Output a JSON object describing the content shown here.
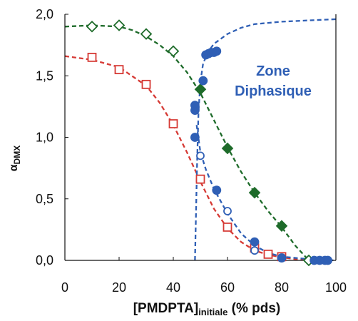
{
  "chart_data": {
    "type": "scatter",
    "xlabel_main": "[PMDPTA]",
    "xlabel_sub": "initiale",
    "xlabel_unit": " (% pds)",
    "ylabel_main": "α",
    "ylabel_sub": "DMX",
    "xlim": [
      0,
      100
    ],
    "ylim": [
      0,
      2.0
    ],
    "xticks": [
      0,
      20,
      40,
      60,
      80,
      100
    ],
    "yticks": [
      0.0,
      0.5,
      1.0,
      1.5,
      2.0
    ],
    "xtick_labels": [
      "0",
      "20",
      "40",
      "60",
      "80",
      "100"
    ],
    "ytick_labels": [
      "0,0",
      "0,5",
      "1,0",
      "1,5",
      "2,0"
    ],
    "annotation_line1": "Zone",
    "annotation_line2": "Diphasique",
    "grid": false,
    "series": [
      {
        "color": "#1e6b2a",
        "marker": "diamond-open",
        "points": [
          [
            10,
            1.9
          ],
          [
            20,
            1.91
          ],
          [
            30,
            1.84
          ],
          [
            40,
            1.7
          ]
        ]
      },
      {
        "color": "#1e6b2a",
        "marker": "diamond-filled",
        "points": [
          [
            50,
            1.39
          ],
          [
            60,
            0.91
          ],
          [
            70,
            0.55
          ],
          [
            80,
            0.28
          ]
        ]
      },
      {
        "color": "#1e6b2a",
        "marker": "diamond-open",
        "points": [
          [
            90,
            0.0
          ]
        ]
      },
      {
        "color": "#d63a35",
        "marker": "square-open",
        "points": [
          [
            10,
            1.65
          ],
          [
            20,
            1.55
          ],
          [
            30,
            1.43
          ],
          [
            40,
            1.11
          ],
          [
            50,
            0.66
          ],
          [
            60,
            0.27
          ],
          [
            70,
            0.1
          ],
          [
            75,
            0.05
          ],
          [
            80,
            0.03
          ]
        ]
      },
      {
        "color": "#2f5fb5",
        "marker": "circle-filled",
        "points": [
          [
            48,
            1.26
          ],
          [
            48,
            1.22
          ],
          [
            48,
            1.0
          ],
          [
            51,
            1.46
          ],
          [
            52,
            1.67
          ],
          [
            53,
            1.68
          ],
          [
            54,
            1.69
          ],
          [
            55,
            1.69
          ],
          [
            56,
            1.7
          ],
          [
            56,
            0.57
          ],
          [
            70,
            0.15
          ],
          [
            80,
            0.02
          ],
          [
            92,
            0.0
          ],
          [
            94,
            0.0
          ],
          [
            96,
            0.0
          ],
          [
            97,
            0.0
          ]
        ]
      },
      {
        "color": "#2f5fb5",
        "marker": "circle-open",
        "points": [
          [
            50,
            0.85
          ],
          [
            60,
            0.4
          ],
          [
            70,
            0.08
          ]
        ]
      }
    ],
    "curves": [
      {
        "color": "#1e6b2a",
        "points": [
          [
            0,
            1.9
          ],
          [
            10,
            1.91
          ],
          [
            20,
            1.9
          ],
          [
            25,
            1.87
          ],
          [
            30,
            1.82
          ],
          [
            35,
            1.75
          ],
          [
            40,
            1.66
          ],
          [
            45,
            1.53
          ],
          [
            50,
            1.36
          ],
          [
            55,
            1.14
          ],
          [
            60,
            0.92
          ],
          [
            65,
            0.72
          ],
          [
            70,
            0.55
          ],
          [
            75,
            0.4
          ],
          [
            80,
            0.27
          ],
          [
            85,
            0.12
          ],
          [
            90,
            0.0
          ]
        ]
      },
      {
        "color": "#d63a35",
        "points": [
          [
            0,
            1.66
          ],
          [
            10,
            1.63
          ],
          [
            20,
            1.57
          ],
          [
            30,
            1.42
          ],
          [
            35,
            1.28
          ],
          [
            40,
            1.1
          ],
          [
            45,
            0.88
          ],
          [
            50,
            0.64
          ],
          [
            55,
            0.42
          ],
          [
            60,
            0.26
          ],
          [
            65,
            0.15
          ],
          [
            70,
            0.08
          ],
          [
            75,
            0.045
          ],
          [
            80,
            0.025
          ],
          [
            85,
            0.01
          ],
          [
            90,
            0.0
          ]
        ]
      },
      {
        "color": "#2f5fb5",
        "points": [
          [
            48,
            0.0
          ],
          [
            48.4,
            0.4
          ],
          [
            48.8,
            0.8
          ],
          [
            49.3,
            1.2
          ],
          [
            50,
            1.45
          ],
          [
            51,
            1.6
          ],
          [
            53,
            1.7
          ],
          [
            55,
            1.76
          ],
          [
            60,
            1.84
          ],
          [
            65,
            1.89
          ],
          [
            70,
            1.92
          ],
          [
            80,
            1.94
          ],
          [
            90,
            1.95
          ],
          [
            100,
            1.96
          ]
        ]
      },
      {
        "color": "#2f5fb5",
        "points": [
          [
            48.6,
            1.1
          ],
          [
            50,
            0.88
          ],
          [
            52,
            0.74
          ],
          [
            55,
            0.58
          ],
          [
            60,
            0.38
          ],
          [
            65,
            0.22
          ],
          [
            70,
            0.12
          ],
          [
            75,
            0.06
          ],
          [
            80,
            0.03
          ],
          [
            90,
            0.01
          ],
          [
            100,
            0.0
          ]
        ]
      }
    ]
  }
}
